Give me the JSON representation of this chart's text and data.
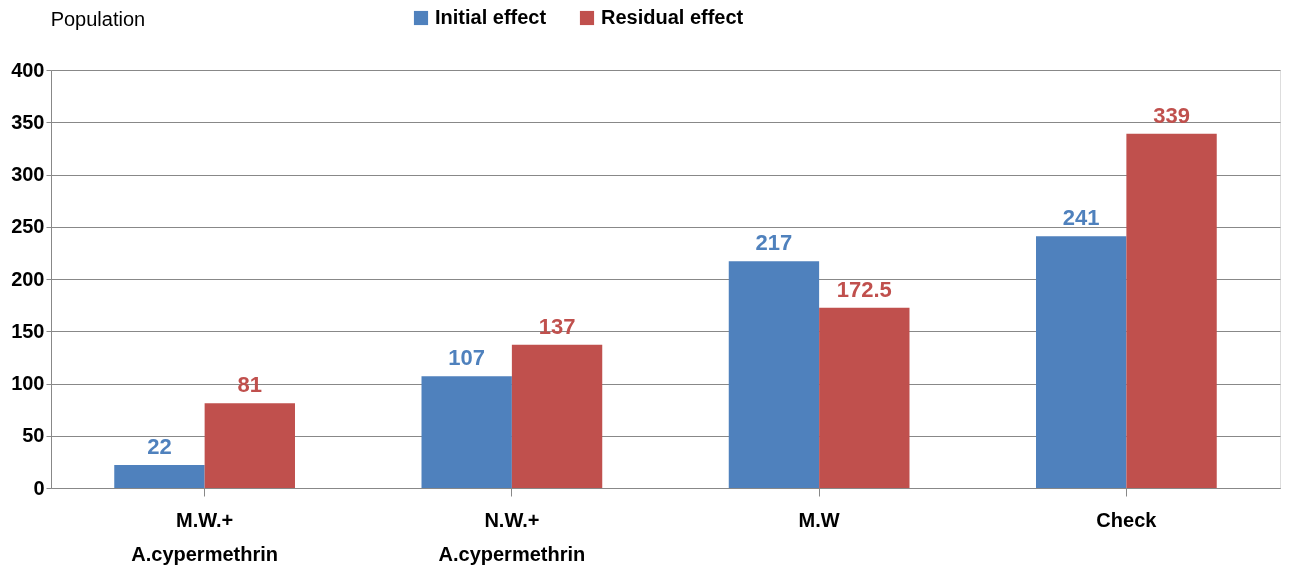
{
  "chart_data": {
    "type": "bar",
    "ylabel": "Population",
    "categories": [
      "M.W.+ A.cypermethrin",
      "N.W.+ A.cypermethrin",
      "M.W",
      "Check"
    ],
    "series": [
      {
        "name": "Initial effect",
        "color": "#4f81bd",
        "values": [
          22,
          107,
          217,
          241
        ]
      },
      {
        "name": "Residual effect",
        "color": "#c0504d",
        "values": [
          81,
          137,
          172.5,
          339
        ]
      }
    ],
    "ylim": [
      0,
      400
    ],
    "yticks": [
      0,
      50,
      100,
      150,
      200,
      250,
      300,
      350,
      400
    ],
    "grid": "y",
    "legend": "top",
    "data_labels": true
  }
}
